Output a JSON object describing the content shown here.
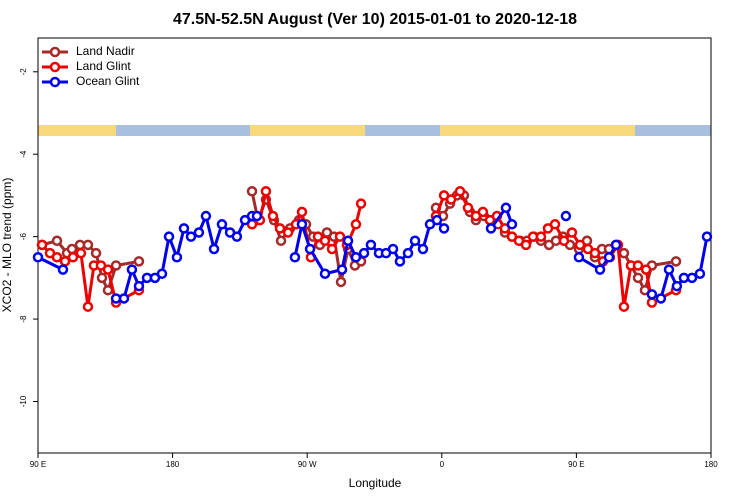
{
  "chart_data": {
    "type": "line",
    "title": "47.5N-52.5N August (Ver 10)   2015-01-01 to 2020-12-18",
    "xlabel": "Longitude",
    "ylabel": "XCO2 - MLO trend (ppm)",
    "xlim": [
      90,
      540
    ],
    "ylim": [
      -11.25,
      -1.18
    ],
    "xticks": [
      {
        "value": 90,
        "label": "90 E"
      },
      180,
      {
        "value": 270,
        "label": "90 W"
      },
      {
        "value": 360,
        "label": "0"
      },
      {
        "value": 450,
        "label": "90 E"
      },
      {
        "value": 540,
        "label": "180"
      }
    ],
    "yticks": [
      -10,
      -8,
      -6,
      -4,
      -2
    ],
    "legend": "top-left",
    "series": [
      {
        "name": "Land Nadir",
        "color": "#a52a2a",
        "x": [
          92.7,
          102.7,
          109.4,
          112.7,
          118.1,
          123.4,
          128.8,
          132.8,
          136.8,
          142.2,
          157.5,
          195,
          233.1,
          237.1,
          242.4,
          247.8,
          252.5,
          258.5,
          264.5,
          269.2,
          273.9,
          278.5,
          283.2,
          287.9,
          292.6,
          297.3,
          301.9,
          306.0,
          330,
          356.1,
          360.8,
          365.5,
          370.1,
          374.8,
          378.8,
          382.8,
          388.2,
          392.2,
          397.6,
          402.2,
          406.9,
          412.3,
          417.0,
          421.6,
          426.3,
          431.7,
          436.3,
          441.0,
          445.7,
          451.7,
          457.1,
          462.4,
          467.1,
          471.8,
          476.5,
          481.8,
          486.5,
          491.2,
          495.8,
          500.5,
          516.6
        ],
        "values": [
          -6.2,
          -6.1,
          -6.4,
          -6.3,
          -6.2,
          -6.2,
          -6.4,
          -7.0,
          -7.3,
          -6.7,
          -6.6,
          null,
          -4.9,
          -5.6,
          -5.1,
          -5.6,
          -6.1,
          -5.8,
          -5.6,
          -5.7,
          -6.0,
          -6.2,
          -5.9,
          -6.0,
          -7.1,
          -6.3,
          -6.7,
          -6.6,
          null,
          -5.3,
          -5.5,
          -5.2,
          -5.0,
          -5.0,
          -5.4,
          -5.6,
          -5.5,
          -5.6,
          -5.7,
          -5.9,
          -6.0,
          -6.1,
          -6.1,
          -6.0,
          -6.1,
          -6.2,
          -6.1,
          -6.0,
          -6.2,
          -6.3,
          -6.1,
          -6.5,
          -6.3,
          -6.3,
          -6.2,
          -6.4,
          -6.7,
          -7.0,
          -7.3,
          -6.7,
          -6.6
        ]
      },
      {
        "name": "Land Glint",
        "color": "#ee0000",
        "x": [
          92.7,
          98.0,
          102.7,
          108.1,
          113.4,
          118.7,
          123.4,
          127.4,
          132.1,
          136.8,
          142.2,
          157.5,
          195,
          233.1,
          238.4,
          242.4,
          247.1,
          251.8,
          257.2,
          262.5,
          266.5,
          272.5,
          277.2,
          281.9,
          286.6,
          291.9,
          296.6,
          302.6,
          306.0,
          330,
          356.1,
          361.5,
          366.2,
          372.2,
          377.5,
          382.8,
          387.5,
          392.2,
          396.9,
          402.2,
          406.9,
          411.6,
          416.3,
          421.0,
          426.3,
          431.0,
          435.7,
          441.7,
          447.0,
          452.4,
          457.7,
          462.4,
          467.8,
          472.4,
          477.8,
          481.8,
          486.5,
          491.2,
          496.6,
          500.5,
          516.6
        ],
        "values": [
          -6.2,
          -6.4,
          -6.5,
          -6.6,
          -6.5,
          -6.4,
          -7.7,
          -6.7,
          -6.7,
          -6.8,
          -7.6,
          -7.3,
          null,
          -5.7,
          -5.6,
          -4.9,
          -5.5,
          -5.8,
          -5.9,
          -5.7,
          -5.4,
          -6.5,
          -6.0,
          -6.1,
          -6.3,
          -6.0,
          -6.2,
          -5.7,
          -5.2,
          null,
          -5.5,
          -5.0,
          -5.1,
          -4.9,
          -5.3,
          -5.5,
          -5.4,
          -5.6,
          -5.5,
          -5.8,
          -6.0,
          -6.1,
          -6.2,
          -6.0,
          -6.0,
          -5.8,
          -5.7,
          -6.1,
          -5.9,
          -6.2,
          -6.3,
          -6.4,
          -6.6,
          -6.5,
          -6.2,
          -7.7,
          -6.7,
          -6.7,
          -6.8,
          -7.6,
          -7.3
        ]
      },
      {
        "name": "Ocean Glint",
        "color": "#0000ee",
        "x": [
          90,
          106.7,
          125,
          142.2,
          147.5,
          152.8,
          157.5,
          162.9,
          168.2,
          172.9,
          177.6,
          182.9,
          187.6,
          192.3,
          197.6,
          202.3,
          207.7,
          213.0,
          218.4,
          223.0,
          228.4,
          233.1,
          236.4,
          250,
          261.8,
          266.5,
          271.9,
          281.9,
          293.3,
          297.3,
          302.6,
          308.0,
          312.6,
          318.0,
          322.7,
          327.4,
          332.0,
          337.4,
          342.1,
          347.4,
          352.1,
          356.8,
          361.5,
          380,
          392.9,
          402.9,
          406.9,
          425,
          443.0,
          447,
          451.7,
          465.8,
          471.8,
          476.5,
          490,
          500.5,
          506.5,
          511.9,
          517.2,
          521.9,
          527.3,
          532.6,
          537.3
        ],
        "values": [
          -6.5,
          -6.8,
          null,
          -7.5,
          -7.5,
          -6.8,
          -7.2,
          -7.0,
          -7.0,
          -6.9,
          -6.0,
          -6.5,
          -5.8,
          -6.0,
          -5.9,
          -5.5,
          -6.3,
          -5.7,
          -5.9,
          -6.0,
          -5.6,
          -5.5,
          -5.5,
          null,
          -6.5,
          -5.7,
          -6.3,
          -6.9,
          -6.8,
          -6.1,
          -6.5,
          -6.4,
          -6.2,
          -6.4,
          -6.4,
          -6.3,
          -6.6,
          -6.4,
          -6.1,
          -6.3,
          -5.7,
          -5.6,
          -5.8,
          null,
          -5.8,
          -5.3,
          -5.7,
          null,
          -5.5,
          null,
          -6.5,
          -6.8,
          -6.5,
          -6.2,
          null,
          -7.4,
          -7.5,
          -6.8,
          -7.2,
          -7.0,
          -7.0,
          -6.9,
          -6.0
        ]
      }
    ]
  }
}
